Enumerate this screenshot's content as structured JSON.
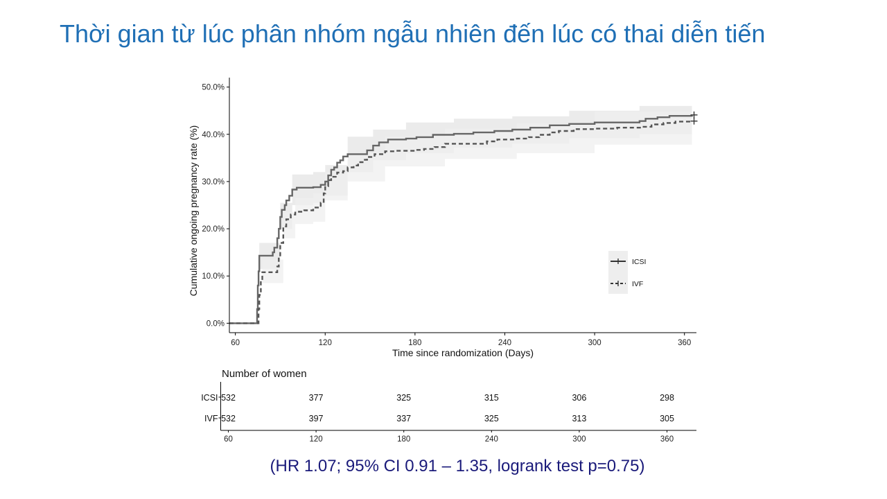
{
  "slide": {
    "title": "Thời gian từ lúc phân nhóm ngẫu nhiên đến lúc có thai diễn tiến",
    "footer": "(HR 1.07; 95% CI 0.91 – 1.35, logrank test p=0.75)"
  },
  "colors": {
    "title": "#1f6fb5",
    "footer": "#1a1a7a",
    "icsi_line": "#666666",
    "ivf_line": "#555555",
    "ci_band": "#e4e4e4",
    "ci_band_outer": "#efefef"
  },
  "chart_data": {
    "type": "line",
    "xlabel": "Time since randomization (Days)",
    "ylabel": "Cumulative ongoing pregnancy rate (%)",
    "xlim": [
      56,
      368
    ],
    "ylim": [
      -2,
      52
    ],
    "x_ticks": [
      60,
      120,
      180,
      240,
      300,
      360
    ],
    "y_ticks": [
      {
        "value": 0,
        "label": "0.0%"
      },
      {
        "value": 10,
        "label": "10.0%"
      },
      {
        "value": 20,
        "label": "20.0%"
      },
      {
        "value": 30,
        "label": "30.0%"
      },
      {
        "value": 40,
        "label": "40.0%"
      },
      {
        "value": 50,
        "label": "50.0%"
      }
    ],
    "grid": false,
    "legend_position": "right",
    "series": [
      {
        "name": "ICSI",
        "style": "solid",
        "points": [
          [
            56,
            0
          ],
          [
            74,
            0
          ],
          [
            74.5,
            3
          ],
          [
            75,
            8
          ],
          [
            75.5,
            11
          ],
          [
            76,
            14.3
          ],
          [
            83,
            14.3
          ],
          [
            85,
            15
          ],
          [
            86,
            16
          ],
          [
            88,
            18
          ],
          [
            89,
            20
          ],
          [
            90,
            22.5
          ],
          [
            91,
            24
          ],
          [
            93,
            25
          ],
          [
            94,
            26
          ],
          [
            96,
            27
          ],
          [
            98,
            28.3
          ],
          [
            101,
            28.7
          ],
          [
            112,
            28.8
          ],
          [
            117,
            29.3
          ],
          [
            120,
            30
          ],
          [
            122,
            31.3
          ],
          [
            124,
            32.5
          ],
          [
            126,
            33
          ],
          [
            128,
            34
          ],
          [
            130,
            34.5
          ],
          [
            132,
            35.3
          ],
          [
            135,
            35.8
          ],
          [
            145,
            35.8
          ],
          [
            148,
            36.6
          ],
          [
            152,
            37.6
          ],
          [
            156,
            38.3
          ],
          [
            162,
            38.9
          ],
          [
            174,
            39.1
          ],
          [
            181,
            39.4
          ],
          [
            192,
            39.9
          ],
          [
            206,
            40.1
          ],
          [
            219,
            40.4
          ],
          [
            233,
            40.7
          ],
          [
            245,
            41
          ],
          [
            257,
            41.4
          ],
          [
            270,
            41.9
          ],
          [
            283,
            42.2
          ],
          [
            300,
            42.5
          ],
          [
            315,
            42.5
          ],
          [
            326,
            42.5
          ],
          [
            330,
            42.8
          ],
          [
            334,
            43.3
          ],
          [
            342,
            43.6
          ],
          [
            350,
            43.9
          ],
          [
            365,
            44.1
          ]
        ],
        "lower": [
          [
            56,
            0
          ],
          [
            74,
            0
          ],
          [
            76,
            11.5
          ],
          [
            83,
            11.5
          ],
          [
            90,
            20
          ],
          [
            98,
            25
          ],
          [
            112,
            25.5
          ],
          [
            120,
            27
          ],
          [
            135,
            32
          ],
          [
            152,
            34.5
          ],
          [
            174,
            36
          ],
          [
            206,
            37.2
          ],
          [
            245,
            38
          ],
          [
            283,
            39.2
          ],
          [
            330,
            40
          ],
          [
            365,
            41.2
          ]
        ],
        "upper": [
          [
            56,
            0
          ],
          [
            74,
            0
          ],
          [
            76,
            17
          ],
          [
            83,
            17
          ],
          [
            90,
            25.5
          ],
          [
            98,
            31.5
          ],
          [
            112,
            32
          ],
          [
            120,
            33.5
          ],
          [
            135,
            39.5
          ],
          [
            152,
            41
          ],
          [
            174,
            42.5
          ],
          [
            206,
            43.3
          ],
          [
            245,
            43.8
          ],
          [
            283,
            45
          ],
          [
            330,
            46
          ],
          [
            365,
            47
          ]
        ]
      },
      {
        "name": "IVF",
        "style": "dashed",
        "points": [
          [
            56,
            0
          ],
          [
            75,
            0
          ],
          [
            75.5,
            3
          ],
          [
            76,
            6
          ],
          [
            77,
            9
          ],
          [
            78,
            10.8
          ],
          [
            86,
            10.8
          ],
          [
            88,
            12
          ],
          [
            89,
            14
          ],
          [
            90,
            17
          ],
          [
            92,
            20.5
          ],
          [
            94,
            22
          ],
          [
            97,
            23
          ],
          [
            100,
            23.6
          ],
          [
            106,
            23.9
          ],
          [
            112,
            24.5
          ],
          [
            117,
            25.5
          ],
          [
            119,
            27.5
          ],
          [
            120,
            29
          ],
          [
            122,
            30.3
          ],
          [
            124,
            31
          ],
          [
            128,
            31.9
          ],
          [
            132,
            32.2
          ],
          [
            135,
            33
          ],
          [
            139,
            33.4
          ],
          [
            142,
            34.1
          ],
          [
            145,
            34.6
          ],
          [
            148,
            35.2
          ],
          [
            153,
            35.8
          ],
          [
            160,
            36.4
          ],
          [
            167,
            36.5
          ],
          [
            180,
            36.7
          ],
          [
            186,
            36.9
          ],
          [
            193,
            37.3
          ],
          [
            200,
            38
          ],
          [
            213,
            38
          ],
          [
            228,
            38.5
          ],
          [
            235,
            38.9
          ],
          [
            248,
            39.1
          ],
          [
            256,
            39.4
          ],
          [
            263,
            39.9
          ],
          [
            270,
            40.4
          ],
          [
            276,
            40.7
          ],
          [
            286,
            41.1
          ],
          [
            300,
            41.2
          ],
          [
            315,
            41.4
          ],
          [
            326,
            41.4
          ],
          [
            332,
            41.6
          ],
          [
            338,
            42.1
          ],
          [
            346,
            42.4
          ],
          [
            354,
            42.7
          ],
          [
            365,
            42.8
          ]
        ],
        "lower": [
          [
            56,
            0
          ],
          [
            75,
            0
          ],
          [
            78,
            8.5
          ],
          [
            86,
            8.5
          ],
          [
            92,
            18
          ],
          [
            100,
            21
          ],
          [
            112,
            21.5
          ],
          [
            120,
            26
          ],
          [
            135,
            30
          ],
          [
            160,
            33.2
          ],
          [
            200,
            34.8
          ],
          [
            248,
            36
          ],
          [
            300,
            37.8
          ],
          [
            365,
            39
          ]
        ],
        "upper": [
          [
            56,
            0
          ],
          [
            75,
            0
          ],
          [
            78,
            13.5
          ],
          [
            86,
            13.5
          ],
          [
            92,
            23.5
          ],
          [
            100,
            26.5
          ],
          [
            112,
            27.5
          ],
          [
            120,
            32
          ],
          [
            135,
            36
          ],
          [
            160,
            39.5
          ],
          [
            200,
            41.2
          ],
          [
            248,
            42.3
          ],
          [
            300,
            44.8
          ],
          [
            365,
            46.5
          ]
        ]
      }
    ],
    "risk_table": {
      "title": "Number of women",
      "time_points": [
        60,
        120,
        180,
        240,
        300,
        360
      ],
      "rows": [
        {
          "label": "ICSI",
          "values": [
            "532",
            "377",
            "325",
            "315",
            "306",
            "298"
          ]
        },
        {
          "label": "IVF",
          "values": [
            "532",
            "397",
            "337",
            "325",
            "313",
            "305"
          ]
        }
      ]
    }
  }
}
